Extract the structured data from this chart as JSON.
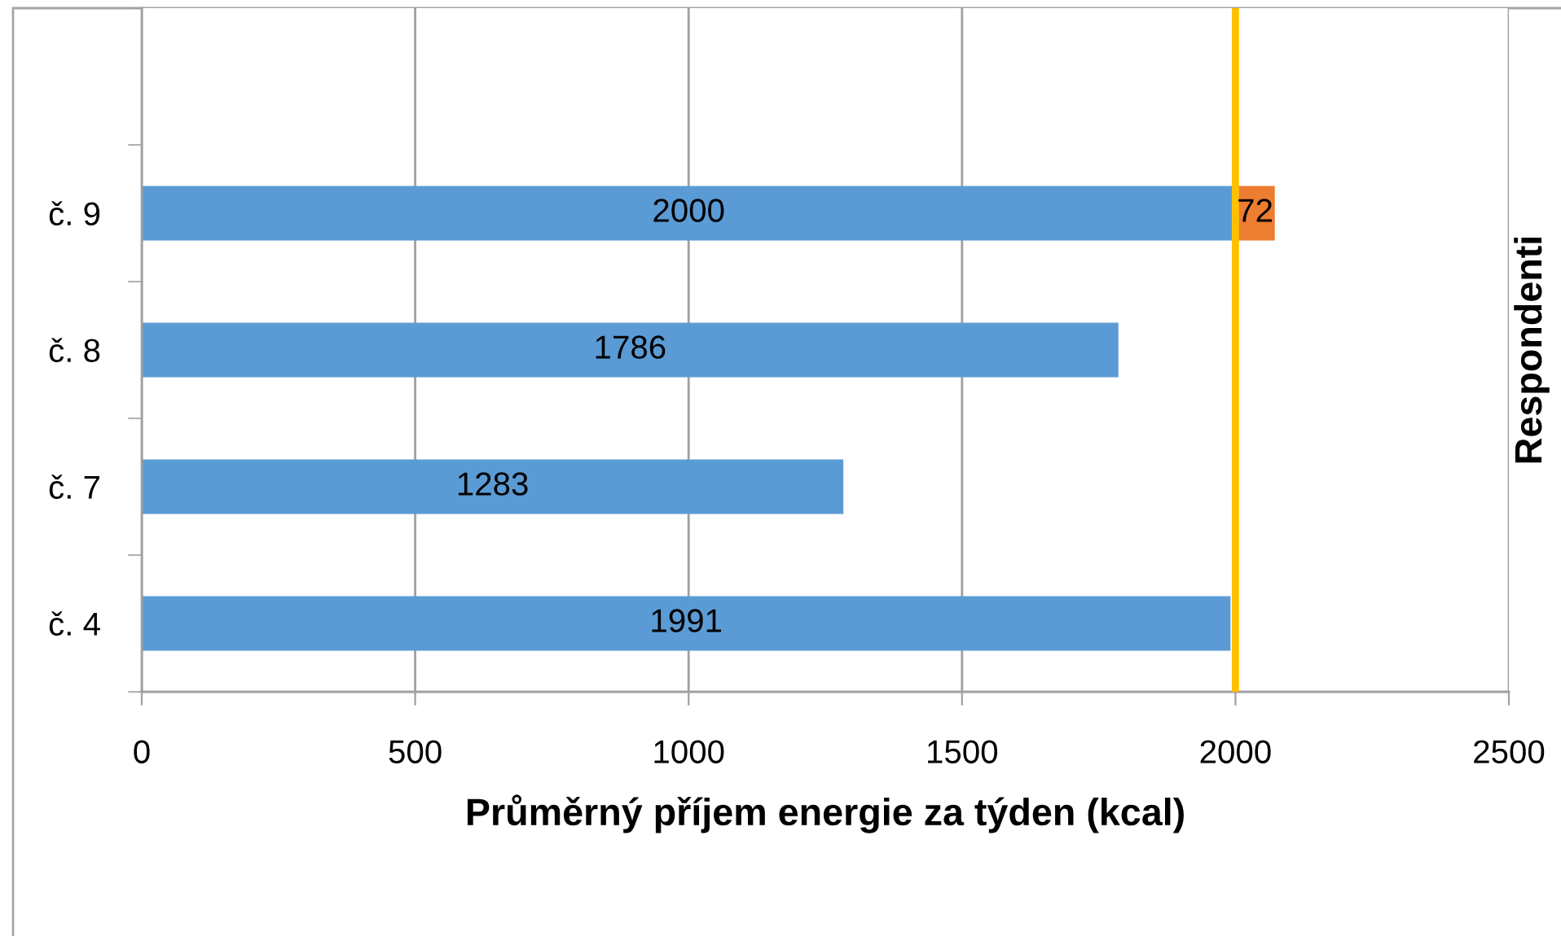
{
  "chart_data": {
    "type": "bar",
    "orientation": "horizontal",
    "stacked": true,
    "categories": [
      null,
      "č. 9",
      "č. 8",
      "č. 7",
      "č. 4"
    ],
    "series": [
      {
        "color": "#5b9bd5",
        "values": [
          null,
          2000,
          1786,
          1283,
          1991
        ]
      },
      {
        "color": "#ed7d31",
        "values": [
          null,
          72,
          null,
          null,
          null
        ]
      }
    ],
    "xlabel": "Průměrný příjem energie za týden (kcal)",
    "ylabel": "Respondenti",
    "xlim": [
      0,
      2500
    ],
    "xticks": [
      0,
      500,
      1000,
      1500,
      2000,
      2500
    ],
    "grid": "x",
    "data_labels": true,
    "ref_lines": [
      {
        "axis": "x",
        "value": 2000,
        "color": "#ffc000"
      }
    ]
  }
}
